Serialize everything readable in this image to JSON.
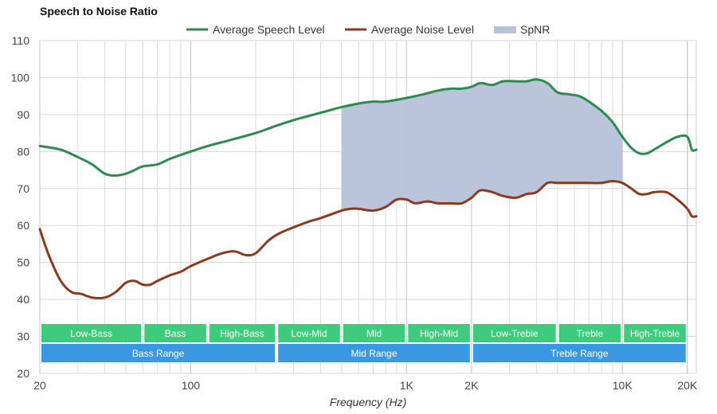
{
  "chart_data": {
    "type": "line",
    "title": "Speech to Noise Ratio",
    "xlabel": "Frequency (Hz)",
    "ylabel": "",
    "x_scale": "log",
    "xlim": [
      20,
      22000
    ],
    "ylim": [
      20,
      110
    ],
    "yticks": [
      20,
      30,
      40,
      50,
      60,
      70,
      80,
      90,
      100,
      110
    ],
    "xticks": [
      {
        "value": 20,
        "label": "20"
      },
      {
        "value": 100,
        "label": "100"
      },
      {
        "value": 1000,
        "label": "1K"
      },
      {
        "value": 2000,
        "label": "2K"
      },
      {
        "value": 10000,
        "label": "10K"
      },
      {
        "value": 20000,
        "label": "20K"
      }
    ],
    "grid": true,
    "legend": "top-center",
    "series": [
      {
        "name": "Average Speech Level",
        "color": "#2e8b4e",
        "x": [
          20,
          25,
          30,
          35,
          40,
          45,
          50,
          55,
          60,
          70,
          80,
          100,
          120,
          150,
          200,
          250,
          300,
          400,
          500,
          600,
          700,
          800,
          1000,
          1200,
          1400,
          1600,
          1800,
          2000,
          2200,
          2500,
          2800,
          3200,
          3600,
          4000,
          4500,
          5000,
          5600,
          6300,
          7000,
          8000,
          9000,
          10000,
          11000,
          12000,
          13000,
          14000,
          16000,
          18000,
          20000,
          21000,
          22000
        ],
        "values": [
          81.5,
          80.5,
          78.5,
          76.5,
          74,
          73.5,
          74,
          75,
          76,
          76.5,
          78,
          80,
          81.5,
          83,
          85,
          87,
          88.5,
          90.5,
          92,
          93,
          93.5,
          93.5,
          94.5,
          95.5,
          96.5,
          97,
          97,
          97.5,
          98.5,
          98,
          99,
          99,
          99,
          99.5,
          98.5,
          96,
          95.5,
          95,
          93.5,
          91,
          88,
          84,
          81,
          79.5,
          79.5,
          80.5,
          82.5,
          84,
          84,
          80.5,
          80.5
        ]
      },
      {
        "name": "Average Noise Level",
        "color": "#8b3a1e",
        "x": [
          20,
          22,
          25,
          28,
          31,
          35,
          40,
          45,
          50,
          55,
          60,
          65,
          70,
          80,
          90,
          100,
          120,
          140,
          160,
          180,
          200,
          230,
          260,
          300,
          350,
          400,
          500,
          550,
          600,
          700,
          800,
          900,
          1000,
          1100,
          1250,
          1400,
          1600,
          1800,
          2000,
          2200,
          2500,
          2800,
          3200,
          3600,
          4000,
          4500,
          5000,
          5600,
          6300,
          7000,
          8000,
          9000,
          10000,
          11000,
          12000,
          13000,
          14000,
          16000,
          18000,
          20000,
          21000,
          22000
        ],
        "values": [
          59,
          52,
          45,
          42,
          41.5,
          40.5,
          40.5,
          42,
          44.5,
          45,
          44,
          44,
          45,
          46.5,
          47.5,
          49,
          51,
          52.5,
          53,
          52,
          52.5,
          56,
          58,
          59.5,
          61,
          62,
          64,
          64.5,
          64.5,
          64,
          65,
          67,
          67,
          66,
          66.5,
          66,
          66,
          66,
          67.5,
          69.5,
          69,
          68,
          67.5,
          68.5,
          69,
          71.5,
          71.5,
          71.5,
          71.5,
          71.5,
          71.5,
          72,
          71.5,
          70,
          68.5,
          68.5,
          69,
          69,
          67,
          64.5,
          62.5,
          62.5
        ]
      }
    ],
    "area": {
      "name": "SpNR",
      "color": "#b6c2d9",
      "x_range": [
        500,
        10000
      ]
    },
    "bands": [
      {
        "label": "Low-Bass",
        "from": 20,
        "to": 60,
        "row": 1,
        "color": "#3dcc7e"
      },
      {
        "label": "Bass",
        "from": 60,
        "to": 120,
        "row": 1,
        "color": "#3dcc7e"
      },
      {
        "label": "High-Bass",
        "from": 120,
        "to": 250,
        "row": 1,
        "color": "#3dcc7e"
      },
      {
        "label": "Low-Mid",
        "from": 250,
        "to": 500,
        "row": 1,
        "color": "#3dcc7e"
      },
      {
        "label": "Mid",
        "from": 500,
        "to": 1000,
        "row": 1,
        "color": "#3dcc7e"
      },
      {
        "label": "High-Mid",
        "from": 1000,
        "to": 2000,
        "row": 1,
        "color": "#3dcc7e"
      },
      {
        "label": "Low-Treble",
        "from": 2000,
        "to": 5000,
        "row": 1,
        "color": "#3dcc7e"
      },
      {
        "label": "Treble",
        "from": 5000,
        "to": 10000,
        "row": 1,
        "color": "#3dcc7e"
      },
      {
        "label": "High-Treble",
        "from": 10000,
        "to": 20000,
        "row": 1,
        "color": "#3dcc7e"
      },
      {
        "label": "Bass Range",
        "from": 20,
        "to": 250,
        "row": 2,
        "color": "#3a98e3"
      },
      {
        "label": "Mid Range",
        "from": 250,
        "to": 2000,
        "row": 2,
        "color": "#3a98e3"
      },
      {
        "label": "Treble Range",
        "from": 2000,
        "to": 20000,
        "row": 2,
        "color": "#3a98e3"
      }
    ]
  }
}
